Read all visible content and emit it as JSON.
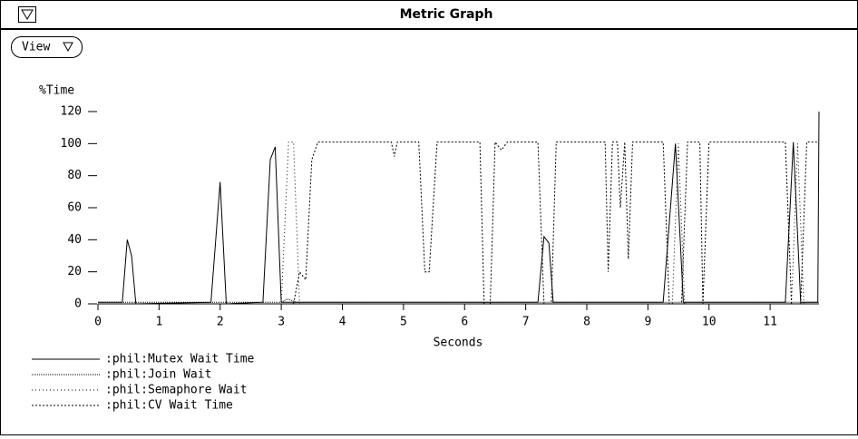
{
  "window": {
    "title": "Metric Graph",
    "menu_button": "View"
  },
  "chart_data": {
    "type": "line",
    "ylabel": "%Time",
    "xlabel": "Seconds",
    "xlim": [
      0,
      11.8
    ],
    "ylim": [
      0,
      120
    ],
    "xticks": [
      0,
      1,
      2,
      3,
      4,
      5,
      6,
      7,
      8,
      9,
      10,
      11
    ],
    "yticks": [
      0,
      20,
      40,
      60,
      80,
      100,
      120
    ],
    "series": [
      {
        "name": ":phil:Mutex Wait Time",
        "color": "#000",
        "style": "solid",
        "x": [
          0,
          0.4,
          0.48,
          0.55,
          0.62,
          1.85,
          2.0,
          2.1,
          2.7,
          2.82,
          2.9,
          3.0,
          7.2,
          7.3,
          7.38,
          7.45,
          9.25,
          9.45,
          9.58,
          11.25,
          11.38,
          11.5,
          11.78,
          11.8
        ],
        "values": [
          1,
          1,
          40,
          30,
          0,
          1,
          76,
          0,
          1,
          90,
          98,
          1,
          1,
          42,
          38,
          1,
          1,
          100,
          1,
          1,
          101,
          1,
          1,
          120
        ]
      },
      {
        "name": ":phil:Join Wait",
        "color": "#000",
        "style": "dense",
        "x": [
          0,
          3.0,
          3.1,
          3.25,
          3.4,
          11.8
        ],
        "values": [
          1,
          1,
          3,
          1,
          1,
          1
        ]
      },
      {
        "name": ":phil:Semaphore Wait",
        "color": "#000",
        "style": "dotted",
        "x": [
          0,
          3.0,
          3.12,
          3.2,
          3.3,
          9.4,
          9.5,
          9.6,
          11.35,
          11.45,
          11.55,
          11.8
        ],
        "values": [
          0,
          0,
          101,
          101,
          0,
          0,
          100,
          0,
          0,
          100,
          0,
          0
        ]
      },
      {
        "name": ":phil:CV Wait Time",
        "color": "#000",
        "style": "dashed",
        "x": [
          0,
          3.2,
          3.3,
          3.4,
          3.5,
          3.6,
          4.8,
          4.85,
          4.9,
          5.25,
          5.35,
          5.42,
          5.55,
          6.25,
          6.32,
          6.42,
          6.5,
          6.6,
          6.7,
          7.2,
          7.3,
          7.42,
          7.5,
          8.3,
          8.35,
          8.42,
          8.5,
          8.55,
          8.62,
          8.68,
          8.75,
          9.25,
          9.35,
          9.55,
          9.65,
          9.85,
          9.9,
          10.0,
          11.25,
          11.35,
          11.5,
          11.6,
          11.8
        ],
        "values": [
          0,
          0,
          20,
          15,
          90,
          101,
          101,
          92,
          101,
          101,
          20,
          20,
          101,
          101,
          0,
          0,
          101,
          96,
          101,
          101,
          0,
          0,
          101,
          101,
          20,
          101,
          101,
          60,
          101,
          28,
          101,
          101,
          0,
          0,
          101,
          101,
          0,
          101,
          101,
          0,
          0,
          101,
          101
        ]
      }
    ]
  }
}
